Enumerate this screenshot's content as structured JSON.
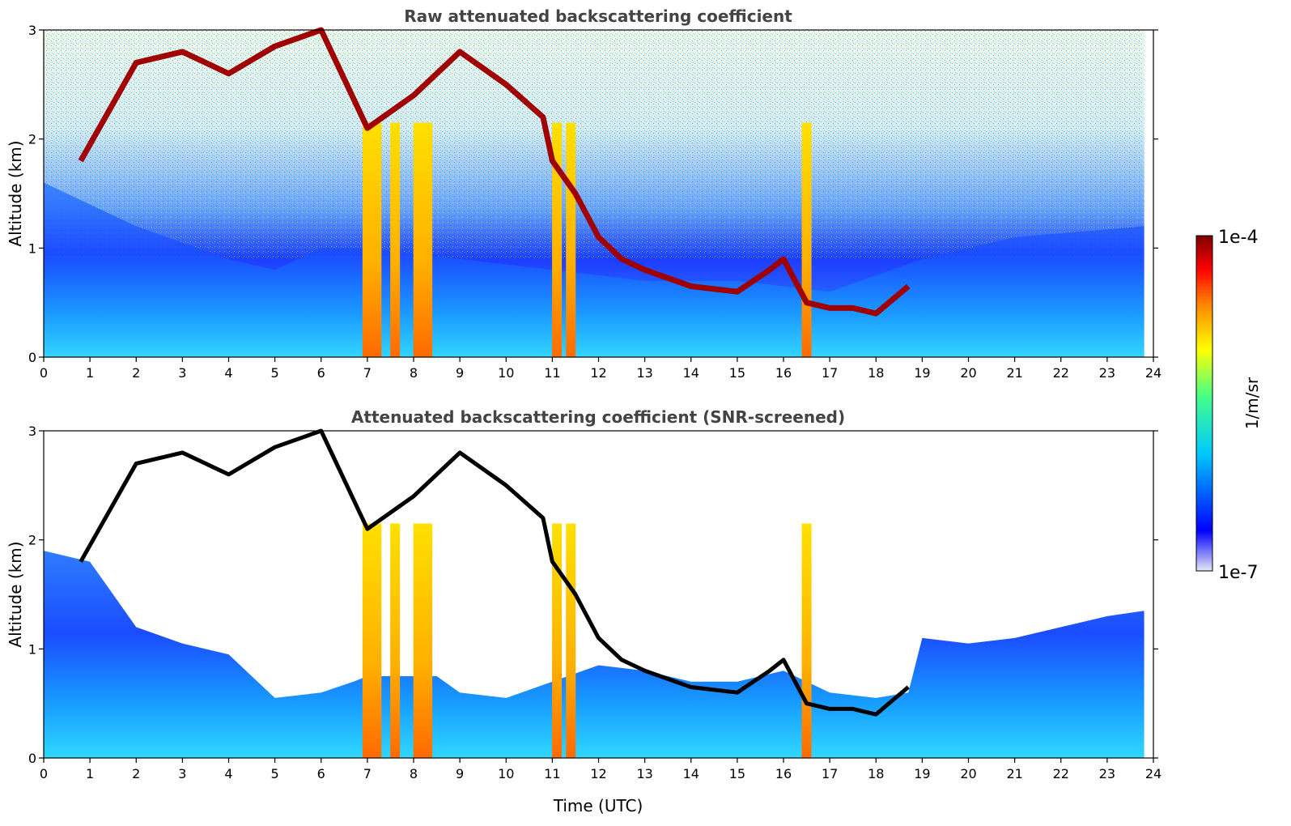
{
  "colors": {
    "colormap": [
      "#e6e6f8",
      "#0000ff",
      "#00c8ff",
      "#44ff88",
      "#ffff00",
      "#ff8000",
      "#ff0000",
      "#7f0000"
    ],
    "screened_layer": "#000000"
  },
  "chart_data": [
    {
      "type": "heatmap",
      "title": "Raw attenuated backscattering coefficient",
      "xlabel": "",
      "ylabel": "Altitude (km)",
      "xlim": [
        0,
        24
      ],
      "ylim": [
        0,
        3
      ],
      "x_ticks": [
        "0",
        "1",
        "2",
        "3",
        "4",
        "5",
        "6",
        "7",
        "8",
        "9",
        "10",
        "11",
        "12",
        "13",
        "14",
        "15",
        "16",
        "17",
        "18",
        "19",
        "20",
        "21",
        "22",
        "23",
        "24"
      ],
      "y_ticks": [
        "0",
        "1",
        "2",
        "3"
      ],
      "data_end_x": 23.8,
      "cloud_layer": {
        "x": [
          0.8,
          2,
          3,
          4,
          5,
          6,
          7,
          8,
          9,
          10,
          10.8,
          11,
          11.5,
          12,
          12.5,
          13,
          14,
          15,
          15.7,
          16,
          16.5,
          17,
          17.5,
          18,
          18.7
        ],
        "y": [
          1.8,
          2.7,
          2.8,
          2.6,
          2.85,
          3.0,
          2.1,
          2.4,
          2.8,
          2.5,
          2.2,
          1.8,
          1.5,
          1.1,
          0.9,
          0.8,
          0.65,
          0.6,
          0.8,
          0.9,
          0.5,
          0.45,
          0.45,
          0.4,
          0.65
        ]
      },
      "precip_columns_x": [
        7.0,
        7.2,
        7.6,
        8.1,
        8.3,
        11.1,
        11.4,
        16.5
      ],
      "boundary_layer_top_x": [
        0,
        2,
        4,
        5,
        6,
        7,
        9,
        11,
        13,
        15,
        17,
        19,
        21,
        23.8
      ],
      "boundary_layer_top_y": [
        1.6,
        1.2,
        0.9,
        0.8,
        1.0,
        1.0,
        0.9,
        0.8,
        0.7,
        0.7,
        0.6,
        0.9,
        1.1,
        1.2
      ]
    },
    {
      "type": "heatmap",
      "title": "Attenuated backscattering coefficient (SNR-screened)",
      "xlabel": "Time (UTC)",
      "ylabel": "Altitude (km)",
      "xlim": [
        0,
        24
      ],
      "ylim": [
        0,
        3
      ],
      "x_ticks": [
        "0",
        "1",
        "2",
        "3",
        "4",
        "5",
        "6",
        "7",
        "8",
        "9",
        "10",
        "11",
        "12",
        "13",
        "14",
        "15",
        "16",
        "17",
        "18",
        "19",
        "20",
        "21",
        "22",
        "23",
        "24"
      ],
      "y_ticks": [
        "0",
        "1",
        "2",
        "3"
      ],
      "data_end_x": 23.8,
      "screened_top_x": [
        0,
        1,
        2,
        3,
        4,
        5,
        6,
        6.7,
        7,
        8.5,
        9,
        10,
        11,
        12,
        13,
        14,
        15,
        16,
        17,
        18,
        18.7,
        19,
        20,
        21,
        22,
        23,
        23.8
      ],
      "screened_top_y": [
        1.9,
        1.8,
        1.2,
        1.05,
        0.95,
        0.55,
        0.6,
        0.7,
        0.75,
        0.75,
        0.6,
        0.55,
        0.7,
        0.85,
        0.8,
        0.7,
        0.7,
        0.8,
        0.6,
        0.55,
        0.6,
        1.1,
        1.05,
        1.1,
        1.2,
        1.3,
        1.35
      ]
    }
  ],
  "colorbar": {
    "label": "1/m/sr",
    "max_label": "1e-4",
    "min_label": "1e-7",
    "scale": "log"
  }
}
